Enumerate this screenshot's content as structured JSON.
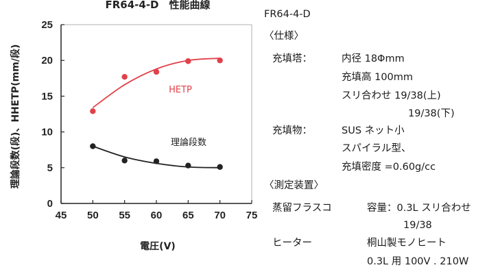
{
  "chart_data": {
    "type": "line",
    "title": "FR64-4-D　性能曲線",
    "xlabel": "電圧(V)",
    "ylabel": "理論段数(段)、HHETP(mm/段)",
    "x_ticks": [
      "45",
      "50",
      "55",
      "60",
      "65",
      "70",
      "75"
    ],
    "y_ticks": [
      "0",
      "5",
      "10",
      "15",
      "20",
      "25"
    ],
    "xlim": [
      45,
      75
    ],
    "ylim": [
      0,
      25
    ],
    "grid": false,
    "series": [
      {
        "name": "HETP",
        "color": "#e0414a",
        "x": [
          50,
          55,
          60,
          65,
          70
        ],
        "y": [
          12.9,
          17.7,
          18.4,
          19.9,
          20.0
        ],
        "fit": [
          [
            50,
            13.4
          ],
          [
            55,
            16.6
          ],
          [
            60,
            18.8
          ],
          [
            65,
            20.0
          ],
          [
            70,
            20.3
          ]
        ]
      },
      {
        "name": "理論段数",
        "color": "#222222",
        "x": [
          50,
          55,
          60,
          65,
          70
        ],
        "y": [
          8.0,
          6.0,
          5.9,
          5.3,
          5.1
        ],
        "fit": [
          [
            50,
            8.0
          ],
          [
            55,
            6.5
          ],
          [
            60,
            5.6
          ],
          [
            65,
            5.1
          ],
          [
            70,
            5.0
          ]
        ]
      }
    ]
  },
  "spec": {
    "model": "FR64-4-D",
    "spec_heading": "〈仕様〉",
    "packed_tower_label": "充填塔：",
    "inner_diameter": "内径 18Φmm",
    "packed_height": "充填高 100mm",
    "joint_upper": "スリ合わせ 19/38(上)",
    "joint_lower": "19/38(下)",
    "packing_label": "充填物：",
    "packing_material": "SUS ネット小",
    "packing_type": "スパイラル型、",
    "packing_density": "充填密度 =0.60g/cc",
    "measure_heading": "〈測定装置〉",
    "flask_label": "蒸留フラスコ",
    "flask_spec": "容量：0.3L スリ合わせ",
    "flask_joint": "19/38",
    "heater_label": "ヒーター",
    "heater_maker": "桐山製モノヒート",
    "heater_spec": "0.3L 用 100V . 210W"
  }
}
